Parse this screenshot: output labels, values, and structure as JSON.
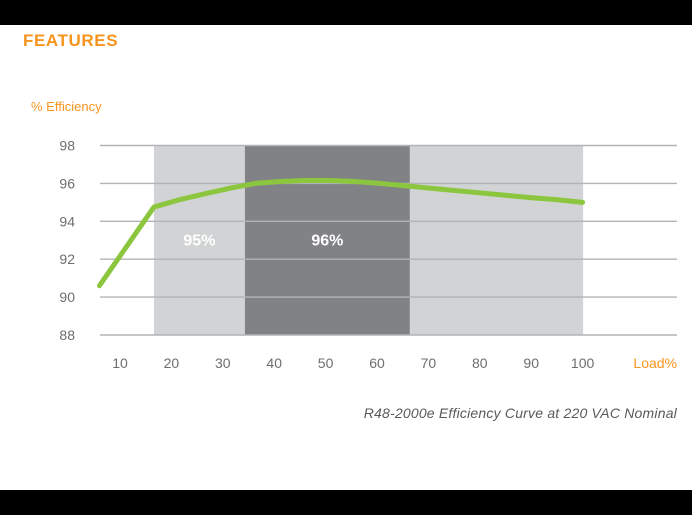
{
  "header": {
    "title": "FEATURES"
  },
  "caption": "R48-2000e Efficiency Curve at 220 VAC Nominal",
  "colors": {
    "accent_orange": "#F7941D",
    "line_green": "#8CC63F",
    "band_light": "#D1D3D4",
    "band_dark": "#808285",
    "gridline": "#B1B3B6",
    "tick_text": "#6D6E71",
    "caption_text": "#58595B",
    "band_label_text": "#FFFFFF",
    "bar_black": "#000000",
    "background": "#FFFFFF"
  },
  "chart_data": {
    "type": "line",
    "title": "",
    "xlabel": "Load%",
    "ylabel": "% Efficiency",
    "x_ticks": [
      10,
      20,
      30,
      40,
      50,
      60,
      70,
      80,
      90,
      100
    ],
    "y_ticks": [
      88,
      90,
      92,
      94,
      96,
      98
    ],
    "xlim": [
      6,
      118
    ],
    "ylim": [
      88,
      98
    ],
    "grid": "horizontal",
    "legend": "none",
    "series": [
      {
        "name": "Efficiency",
        "color": "#8CC63F",
        "points": [
          [
            6.0,
            90.6
          ],
          [
            16.6,
            94.75
          ],
          [
            21.7,
            95.15
          ],
          [
            26.5,
            95.45
          ],
          [
            31.4,
            95.75
          ],
          [
            36.3,
            96.0
          ],
          [
            41.1,
            96.1
          ],
          [
            46.0,
            96.15
          ],
          [
            51.0,
            96.15
          ],
          [
            55.7,
            96.1
          ],
          [
            60.6,
            96.0
          ],
          [
            66.4,
            95.85
          ],
          [
            72.3,
            95.7
          ],
          [
            78.1,
            95.55
          ],
          [
            83.9,
            95.4
          ],
          [
            89.8,
            95.25
          ],
          [
            94.6,
            95.15
          ],
          [
            100.0,
            95.0
          ]
        ]
      }
    ],
    "bands": [
      {
        "from_load": 16.6,
        "to_load": 34.3,
        "label": "95%",
        "color": "#D1D3D4"
      },
      {
        "from_load": 34.3,
        "to_load": 66.4,
        "label": "96%",
        "color": "#808285"
      },
      {
        "from_load": 66.4,
        "to_load": 100.1,
        "label": "",
        "color": "#D1D3D4"
      }
    ]
  }
}
